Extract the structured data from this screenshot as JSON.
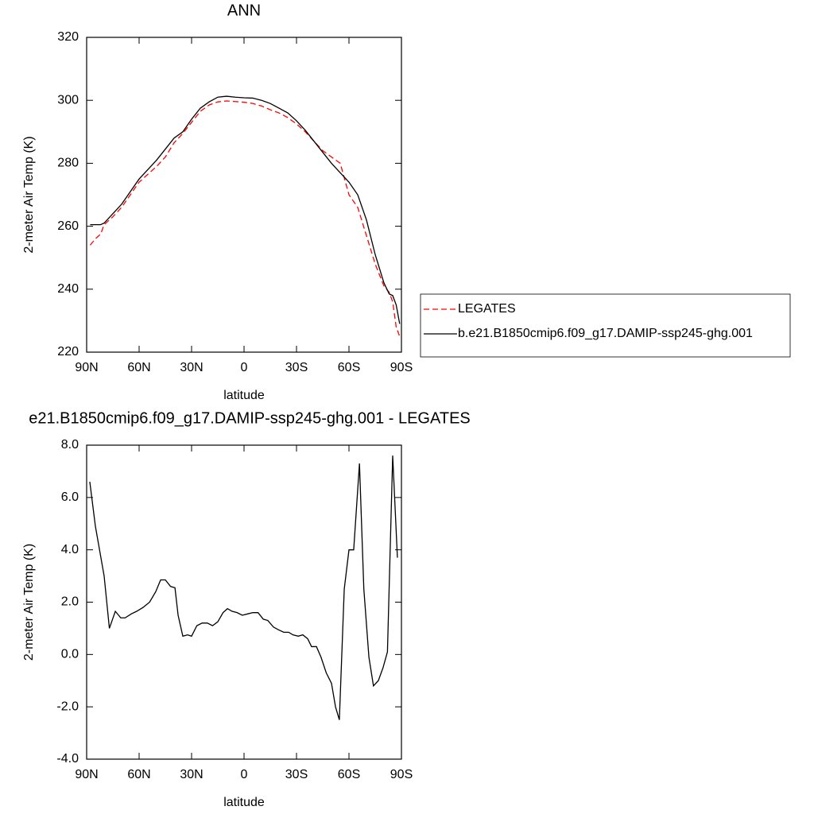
{
  "chart_data": [
    {
      "type": "line",
      "title": "ANN",
      "xlabel": "latitude",
      "ylabel": "2-meter Air Temp (K)",
      "x": [
        88,
        85,
        82,
        80,
        75,
        70,
        65,
        60,
        55,
        50,
        45,
        40,
        35,
        30,
        25,
        20,
        15,
        10,
        5,
        0,
        -5,
        -10,
        -15,
        -20,
        -25,
        -30,
        -35,
        -40,
        -45,
        -50,
        -55,
        -60,
        -65,
        -70,
        -75,
        -80,
        -83,
        -85,
        -87,
        -89
      ],
      "series": [
        {
          "name": "LEGATES",
          "color": "#ff0000",
          "dashed": true,
          "values": [
            254,
            256,
            257.5,
            260.5,
            263,
            266,
            270,
            274,
            276.5,
            279,
            282,
            286.5,
            289.5,
            293,
            296.5,
            298.5,
            299.5,
            299.8,
            299.6,
            299.4,
            299,
            298.2,
            297,
            296,
            294.5,
            292.5,
            290,
            287,
            284,
            282,
            280,
            270,
            266,
            257,
            248,
            241,
            239,
            236,
            228,
            225
          ]
        },
        {
          "name": "b.e21.B1850cmip6.f09_g17.DAMIP-ssp245-ghg.001",
          "color": "#000000",
          "dashed": false,
          "values": [
            260.5,
            260.5,
            260.5,
            261,
            264,
            267,
            271,
            275,
            278,
            281,
            284.5,
            288,
            290,
            294,
            297.5,
            299.5,
            301,
            301.3,
            301,
            300.8,
            300.7,
            300,
            299,
            297.5,
            296,
            293.5,
            290.5,
            287,
            283.5,
            280,
            277,
            274,
            270,
            262,
            251,
            242,
            238.5,
            238,
            235,
            229
          ]
        }
      ],
      "xlim": [
        90,
        -90
      ],
      "xticks": [
        {
          "value": 90,
          "label": "90N"
        },
        {
          "value": 60,
          "label": "60N"
        },
        {
          "value": 30,
          "label": "30N"
        },
        0,
        {
          "value": -30,
          "label": "30S"
        },
        {
          "value": -60,
          "label": "60S"
        },
        {
          "value": -90,
          "label": "90S"
        }
      ],
      "ylim": [
        220,
        320
      ],
      "yticks": [
        220,
        240,
        260,
        280,
        300,
        320
      ],
      "legend": "right"
    },
    {
      "type": "line",
      "title": "e21.B1850cmip6.f09_g17.DAMIP-ssp245-ghg.001 - LEGATES",
      "xlabel": "latitude",
      "ylabel": "2-meter Air Temp (K)",
      "x": [
        88.2,
        85,
        80,
        77,
        73.6,
        70.5,
        68,
        64.5,
        61.4,
        57.7,
        54,
        50.5,
        47.7,
        45,
        42,
        39.5,
        37.7,
        35,
        32.3,
        30,
        27,
        24,
        21,
        18,
        15,
        12,
        9.5,
        6.8,
        4,
        1,
        -2,
        -5,
        -8,
        -11,
        -13.6,
        -16.8,
        -19.5,
        -22.7,
        -25.5,
        -28,
        -31,
        -33.6,
        -36.4,
        -38.6,
        -41.4,
        -44,
        -47,
        -50,
        -52.3,
        -54.5,
        -57.3,
        -60,
        -62.7,
        -66,
        -68.5,
        -71.4,
        -74,
        -76.8,
        -79.5,
        -82,
        -85,
        -87.7
      ],
      "series": [
        {
          "color": "#000000",
          "dashed": false,
          "values": [
            6.6,
            4.9,
            3.0,
            1.0,
            1.65,
            1.4,
            1.4,
            1.55,
            1.65,
            1.8,
            2.0,
            2.4,
            2.85,
            2.85,
            2.6,
            2.55,
            1.5,
            0.7,
            0.75,
            0.7,
            1.1,
            1.2,
            1.2,
            1.1,
            1.25,
            1.6,
            1.75,
            1.65,
            1.6,
            1.5,
            1.55,
            1.6,
            1.6,
            1.35,
            1.3,
            1.05,
            0.95,
            0.85,
            0.85,
            0.75,
            0.7,
            0.75,
            0.6,
            0.3,
            0.3,
            -0.1,
            -0.7,
            -1.1,
            -2.0,
            -2.5,
            2.5,
            4.0,
            4.0,
            7.3,
            2.5,
            -0.1,
            -1.2,
            -1.0,
            -0.5,
            0.1,
            7.6,
            3.7
          ]
        }
      ],
      "xlim": [
        90,
        -90
      ],
      "xticks": [
        {
          "value": 90,
          "label": "90N"
        },
        {
          "value": 60,
          "label": "60N"
        },
        {
          "value": 30,
          "label": "30N"
        },
        0,
        {
          "value": -30,
          "label": "30S"
        },
        {
          "value": -60,
          "label": "60S"
        },
        {
          "value": -90,
          "label": "90S"
        }
      ],
      "ylim": [
        -4,
        8
      ],
      "yticks": [
        {
          "value": -4,
          "label": "-4.0"
        },
        {
          "value": -2,
          "label": "-2.0"
        },
        {
          "value": 0,
          "label": "0.0"
        },
        {
          "value": 2,
          "label": "2.0"
        },
        {
          "value": 4,
          "label": "4.0"
        },
        {
          "value": 6,
          "label": "6.0"
        },
        {
          "value": 8,
          "label": "8.0"
        }
      ]
    }
  ]
}
